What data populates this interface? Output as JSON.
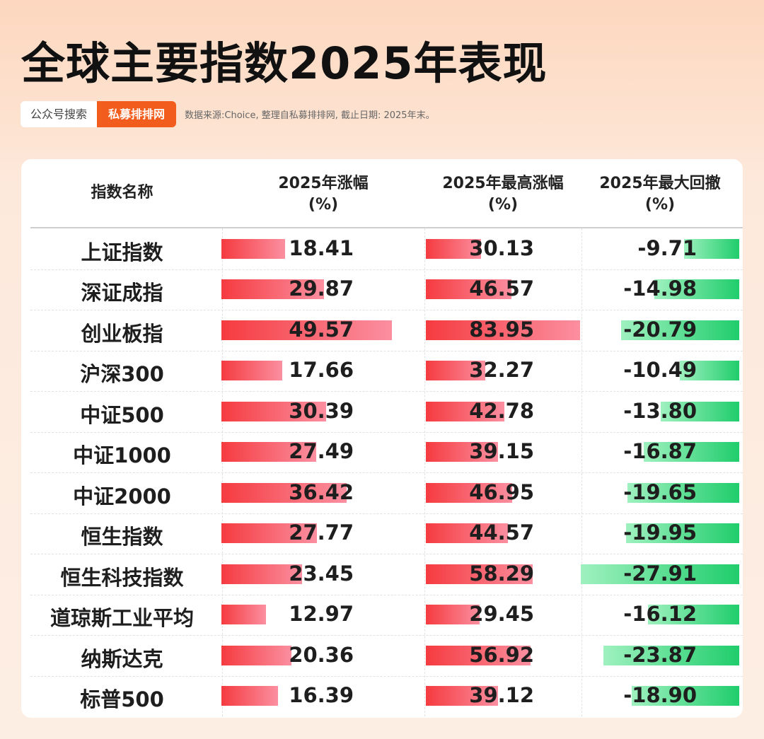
{
  "header": {
    "title": "全球主要指数2025年表现",
    "tag_search": "公众号搜索",
    "tag_brand": "私募排排网",
    "source_note": "数据来源:Choice, 整理自私募排排网, 截止日期: 2025年末。"
  },
  "table": {
    "columns": [
      {
        "key": "name",
        "line1": "指数名称",
        "line2": ""
      },
      {
        "key": "ytd",
        "line1": "2025年涨幅",
        "line2": "(%)"
      },
      {
        "key": "max_gain",
        "line1": "2025年最高涨幅",
        "line2": "(%)"
      },
      {
        "key": "max_drawdown",
        "line1": "2025年最大回撤",
        "line2": "(%)"
      }
    ]
  },
  "colors": {
    "bar_positive_start": "#f53b40",
    "bar_positive_end": "#fb8fa0",
    "bar_negative_start": "#9ff1bf",
    "bar_negative_end": "#20cd6c",
    "brand": "#f25c1c"
  },
  "chart_data": {
    "type": "table",
    "title": "全球主要指数2025年表现",
    "categories": [
      "上证指数",
      "深证成指",
      "创业板指",
      "沪深300",
      "中证500",
      "中证1000",
      "中证2000",
      "恒生指数",
      "恒生科技指数",
      "道琼斯工业平均",
      "纳斯达克",
      "标普500"
    ],
    "series": [
      {
        "name": "2025年涨幅 (%)",
        "values": [
          "18.41",
          "29.87",
          "49.57",
          "17.66",
          "30.39",
          "27.49",
          "36.42",
          "27.77",
          "23.45",
          "12.97",
          "20.36",
          "16.39"
        ]
      },
      {
        "name": "2025年最高涨幅 (%)",
        "values": [
          "30.13",
          "46.57",
          "83.95",
          "32.27",
          "42.78",
          "39.15",
          "46.95",
          "44.57",
          "58.29",
          "29.45",
          "56.92",
          "39.12"
        ]
      },
      {
        "name": "2025年最大回撤 (%)",
        "values": [
          "-9.71",
          "-14.98",
          "-20.79",
          "-10.49",
          "-13.80",
          "-16.87",
          "-19.65",
          "-19.95",
          "-27.91",
          "-16.12",
          "-23.87",
          "-18.90"
        ]
      }
    ]
  }
}
